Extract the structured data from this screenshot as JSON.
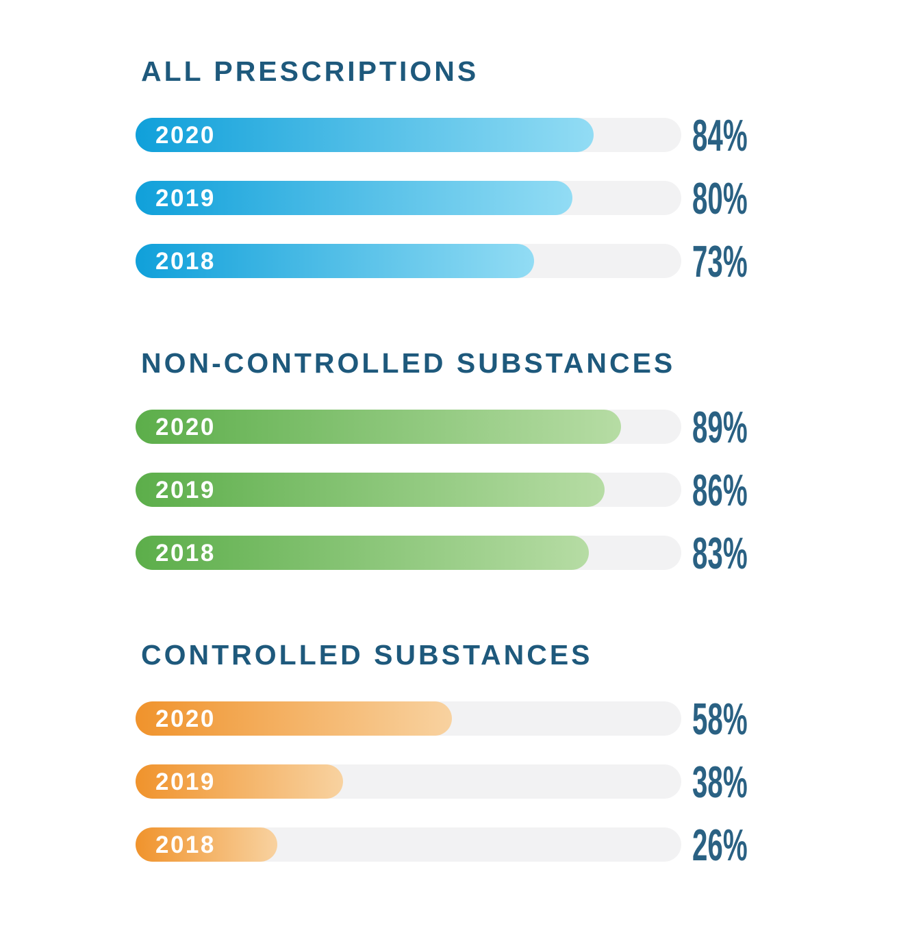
{
  "colors": {
    "page_background": "#ffffff",
    "heading_text": "#1e597c",
    "percent_text": "#2a6183",
    "year_text": "#ffffff",
    "bar_track": "#f2f2f3",
    "blue_gradient_start": "#10a0da",
    "blue_gradient_end": "#92dcf4",
    "green_gradient_start": "#5cae4a",
    "green_gradient_end": "#b6dca4",
    "orange_gradient_start": "#f0932c",
    "orange_gradient_end": "#f8d2a0"
  },
  "chart_data": {
    "type": "bar",
    "orientation": "horizontal",
    "value_unit": "percent",
    "xlim": [
      0,
      100
    ],
    "grid": false,
    "legend": false,
    "sections": [
      {
        "title": "ALL PRESCRIPTIONS",
        "color_start": "#10a0da",
        "color_end": "#92dcf4",
        "categories": [
          "2020",
          "2019",
          "2018"
        ],
        "values": [
          84,
          80,
          73
        ],
        "value_labels": [
          "84%",
          "80%",
          "73%"
        ]
      },
      {
        "title": "NON-CONTROLLED SUBSTANCES",
        "color_start": "#5cae4a",
        "color_end": "#b6dca4",
        "categories": [
          "2020",
          "2019",
          "2018"
        ],
        "values": [
          89,
          86,
          83
        ],
        "value_labels": [
          "89%",
          "86%",
          "83%"
        ]
      },
      {
        "title": "CONTROLLED SUBSTANCES",
        "color_start": "#f0932c",
        "color_end": "#f8d2a0",
        "categories": [
          "2020",
          "2019",
          "2018"
        ],
        "values": [
          58,
          38,
          26
        ],
        "value_labels": [
          "58%",
          "38%",
          "26%"
        ]
      }
    ]
  }
}
